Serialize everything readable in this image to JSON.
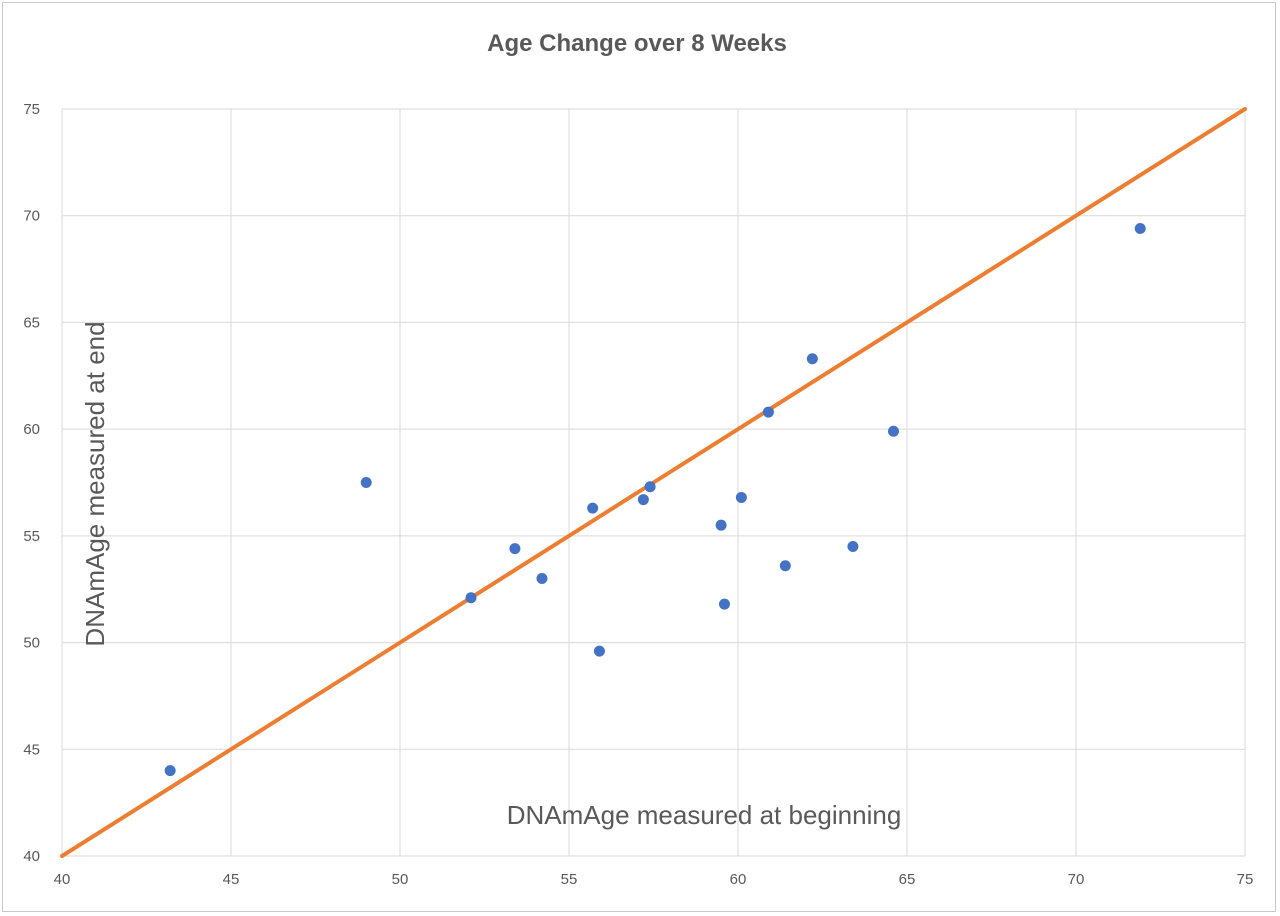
{
  "chart_data": {
    "type": "scatter",
    "title": "Age Change over 8 Weeks",
    "xlabel": "DNAmAge measured at beginning",
    "ylabel": "DNAmAge measured at end",
    "xlim": [
      40,
      75
    ],
    "ylim": [
      40,
      75
    ],
    "x_ticks": [
      40,
      45,
      50,
      55,
      60,
      65,
      70,
      75
    ],
    "y_ticks": [
      40,
      45,
      50,
      55,
      60,
      65,
      70,
      75
    ],
    "grid": true,
    "colors": {
      "points": "#4472c4",
      "line": "#ed7d31",
      "grid": "#d9d9d9",
      "text": "#595959"
    },
    "series": [
      {
        "type": "scatter",
        "points": [
          {
            "x": 43.2,
            "y": 44.0
          },
          {
            "x": 49.0,
            "y": 57.5
          },
          {
            "x": 52.1,
            "y": 52.1
          },
          {
            "x": 53.4,
            "y": 54.4
          },
          {
            "x": 54.2,
            "y": 53.0
          },
          {
            "x": 55.7,
            "y": 56.3
          },
          {
            "x": 55.9,
            "y": 49.6
          },
          {
            "x": 57.2,
            "y": 56.7
          },
          {
            "x": 57.4,
            "y": 57.3
          },
          {
            "x": 59.5,
            "y": 55.5
          },
          {
            "x": 59.6,
            "y": 51.8
          },
          {
            "x": 60.1,
            "y": 56.8
          },
          {
            "x": 60.9,
            "y": 60.8
          },
          {
            "x": 61.4,
            "y": 53.6
          },
          {
            "x": 62.2,
            "y": 63.3
          },
          {
            "x": 63.4,
            "y": 54.5
          },
          {
            "x": 64.6,
            "y": 59.9
          },
          {
            "x": 71.9,
            "y": 69.4
          }
        ]
      },
      {
        "type": "line",
        "points": [
          {
            "x": 40,
            "y": 40
          },
          {
            "x": 75,
            "y": 75
          }
        ]
      }
    ]
  }
}
